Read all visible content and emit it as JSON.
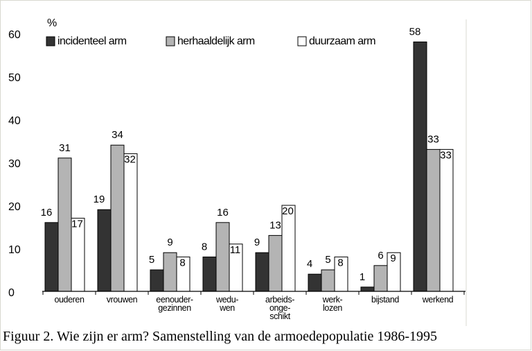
{
  "caption": "Figuur 2. Wie zijn er arm? Samenstelling van de armoedepopulatie 1986-1995",
  "chart_data": {
    "type": "bar",
    "ylabel": "%",
    "ylim": [
      0,
      60
    ],
    "yticks": [
      0,
      10,
      20,
      30,
      40,
      50,
      60
    ],
    "categories": [
      [
        "ouderen"
      ],
      [
        "vrouwen"
      ],
      [
        "eenouder-",
        "gezinnen"
      ],
      [
        "wedu-",
        "wen"
      ],
      [
        "arbeids-",
        "onge-",
        "schikt"
      ],
      [
        "werk-",
        "lozen"
      ],
      [
        "bijstand"
      ],
      [
        "werkend"
      ]
    ],
    "series": [
      {
        "name": "incidenteel arm",
        "color": "#333333",
        "values": [
          16,
          19,
          5,
          8,
          9,
          4,
          1,
          58
        ]
      },
      {
        "name": "herhaaldelijk arm",
        "color": "#b4b4b4",
        "values": [
          31,
          34,
          9,
          16,
          13,
          5,
          6,
          33
        ]
      },
      {
        "name": "duurzaam arm",
        "color": "#ffffff",
        "values": [
          17,
          32,
          8,
          11,
          20,
          8,
          9,
          33
        ]
      }
    ],
    "legend_position": "top",
    "grid": false
  }
}
